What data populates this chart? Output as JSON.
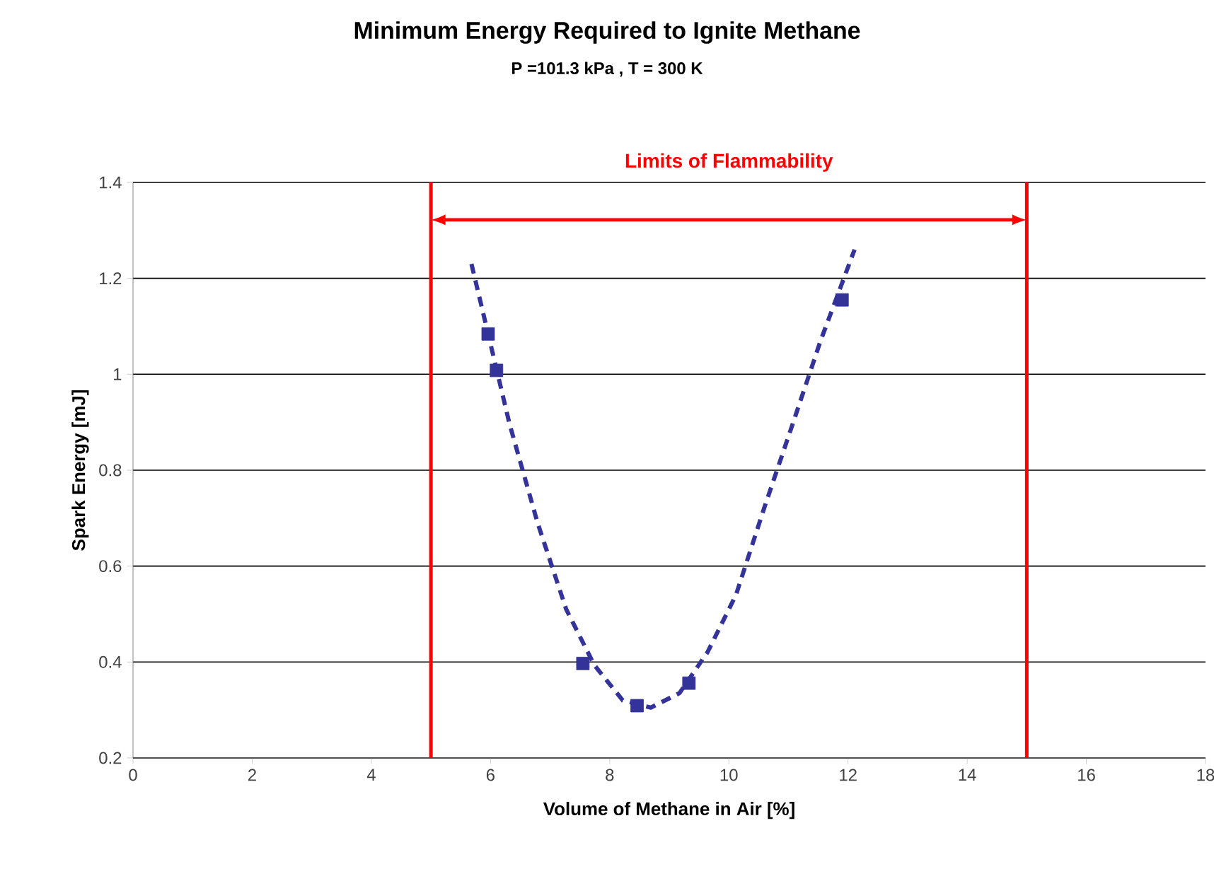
{
  "chart_data": {
    "type": "scatter",
    "title": "Minimum Energy Required to Ignite Methane",
    "subtitle": "P =101.3 kPa , T = 300 K",
    "xlabel": "Volume of Methane in Air [%]",
    "ylabel": "Spark Energy [mJ]",
    "xlim": [
      0,
      18
    ],
    "ylim": [
      0.2,
      1.4
    ],
    "xticks": [
      0,
      2,
      4,
      6,
      8,
      10,
      12,
      14,
      16,
      18
    ],
    "yticks": [
      0.2,
      0.4,
      0.6,
      0.8,
      1,
      1.2,
      1.4
    ],
    "grid": "y",
    "series": [
      {
        "color": "#333399",
        "marker": "square",
        "x": [
          5.96,
          6.1,
          7.55,
          8.46,
          9.33,
          11.9
        ],
        "values": [
          1.084,
          1.008,
          0.397,
          0.309,
          0.356,
          1.155
        ]
      },
      {
        "type": "line",
        "color": "#333399",
        "marker": "none",
        "line_style": "dashed",
        "x": [
          5.68,
          5.96,
          6.32,
          6.79,
          7.27,
          7.74,
          8.22,
          8.69,
          9.17,
          9.64,
          10.12,
          10.59,
          11.07,
          11.54,
          12.11
        ],
        "values": [
          1.23,
          1.084,
          0.896,
          0.69,
          0.51,
          0.394,
          0.32,
          0.305,
          0.335,
          0.42,
          0.54,
          0.72,
          0.896,
          1.07,
          1.26
        ]
      }
    ],
    "ref_lines": [
      {
        "axis": "x",
        "value": 5,
        "color": "#ff0000"
      },
      {
        "axis": "x",
        "value": 15,
        "color": "#ff0000"
      }
    ],
    "annotations": [
      "Limits of Flammability"
    ]
  }
}
